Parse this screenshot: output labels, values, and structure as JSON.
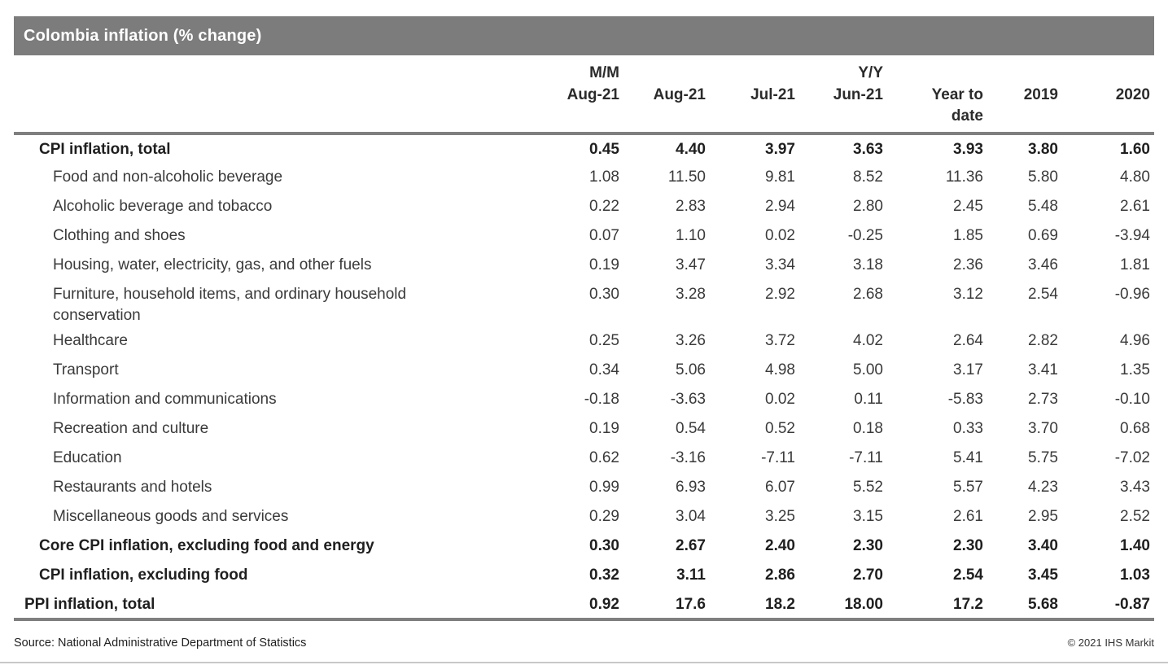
{
  "title": "Colombia inflation (% change)",
  "footer": {
    "source": "Source: National Administrative Department of Statistics",
    "copyright": "© 2021 IHS Markit"
  },
  "colors": {
    "title_bar_gray": "#7c7c7c",
    "rule_gray": "#7f7f7f",
    "bottom_edge_gray": "#c8c8c8",
    "text_dark": "#3a3a3a",
    "text_bold": "#1f1f1f",
    "title_text": "#ffffff"
  },
  "chart_data": {
    "type": "table",
    "title": "Colombia inflation (% change)",
    "column_groups": [
      "M/M",
      "Y/Y"
    ],
    "columns": [
      {
        "group": "M/M",
        "label": "Aug-21"
      },
      {
        "group": "",
        "label": "Aug-21"
      },
      {
        "group": "",
        "label": "Jul-21"
      },
      {
        "group": "Y/Y",
        "label": "Jun-21"
      },
      {
        "group": "",
        "label": "Year to date",
        "wrap": true
      },
      {
        "group": "",
        "label": "2019"
      },
      {
        "group": "",
        "label": "2020"
      }
    ],
    "rows": [
      {
        "label": "CPI inflation, total",
        "style": "bold",
        "indent": 1,
        "values": [
          "0.45",
          "4.40",
          "3.97",
          "3.63",
          "3.93",
          "3.80",
          "1.60"
        ]
      },
      {
        "label": "Food and non-alcoholic beverage",
        "style": "normal",
        "indent": 2,
        "values": [
          "1.08",
          "11.50",
          "9.81",
          "8.52",
          "11.36",
          "5.80",
          "4.80"
        ]
      },
      {
        "label": "Alcoholic beverage and tobacco",
        "style": "normal",
        "indent": 2,
        "values": [
          "0.22",
          "2.83",
          "2.94",
          "2.80",
          "2.45",
          "5.48",
          "2.61"
        ]
      },
      {
        "label": "Clothing and shoes",
        "style": "normal",
        "indent": 2,
        "values": [
          "0.07",
          "1.10",
          "0.02",
          "-0.25",
          "1.85",
          "0.69",
          "-3.94"
        ]
      },
      {
        "label": "Housing, water, electricity, gas, and other fuels",
        "style": "normal",
        "indent": 2,
        "values": [
          "0.19",
          "3.47",
          "3.34",
          "3.18",
          "2.36",
          "3.46",
          "1.81"
        ]
      },
      {
        "label": "Furniture, household items, and ordinary household conservation",
        "style": "normal",
        "indent": 2,
        "values": [
          "0.30",
          "3.28",
          "2.92",
          "2.68",
          "3.12",
          "2.54",
          "-0.96"
        ]
      },
      {
        "label": "Healthcare",
        "style": "normal",
        "indent": 2,
        "values": [
          "0.25",
          "3.26",
          "3.72",
          "4.02",
          "2.64",
          "2.82",
          "4.96"
        ]
      },
      {
        "label": "Transport",
        "style": "normal",
        "indent": 2,
        "values": [
          "0.34",
          "5.06",
          "4.98",
          "5.00",
          "3.17",
          "3.41",
          "1.35"
        ]
      },
      {
        "label": "Information and communications",
        "style": "normal",
        "indent": 2,
        "values": [
          "-0.18",
          "-3.63",
          "0.02",
          "0.11",
          "-5.83",
          "2.73",
          "-0.10"
        ]
      },
      {
        "label": "Recreation and culture",
        "style": "normal",
        "indent": 2,
        "values": [
          "0.19",
          "0.54",
          "0.52",
          "0.18",
          "0.33",
          "3.70",
          "0.68"
        ]
      },
      {
        "label": "Education",
        "style": "normal",
        "indent": 2,
        "values": [
          "0.62",
          "-3.16",
          "-7.11",
          "-7.11",
          "5.41",
          "5.75",
          "-7.02"
        ]
      },
      {
        "label": "Restaurants and hotels",
        "style": "normal",
        "indent": 2,
        "values": [
          "0.99",
          "6.93",
          "6.07",
          "5.52",
          "5.57",
          "4.23",
          "3.43"
        ]
      },
      {
        "label": "Miscellaneous goods and services",
        "style": "normal",
        "indent": 2,
        "values": [
          "0.29",
          "3.04",
          "3.25",
          "3.15",
          "2.61",
          "2.95",
          "2.52"
        ]
      },
      {
        "label": "Core CPI inflation, excluding food and energy",
        "style": "bold",
        "indent": 1,
        "values": [
          "0.30",
          "2.67",
          "2.40",
          "2.30",
          "2.30",
          "3.40",
          "1.40"
        ]
      },
      {
        "label": "CPI inflation, excluding food",
        "style": "bold",
        "indent": 1,
        "values": [
          "0.32",
          "3.11",
          "2.86",
          "2.70",
          "2.54",
          "3.45",
          "1.03"
        ]
      },
      {
        "label": "PPI inflation, total",
        "style": "bold",
        "indent": 0,
        "values": [
          "0.92",
          "17.6",
          "18.2",
          "18.00",
          "17.2",
          "5.68",
          "-0.87"
        ]
      }
    ]
  }
}
